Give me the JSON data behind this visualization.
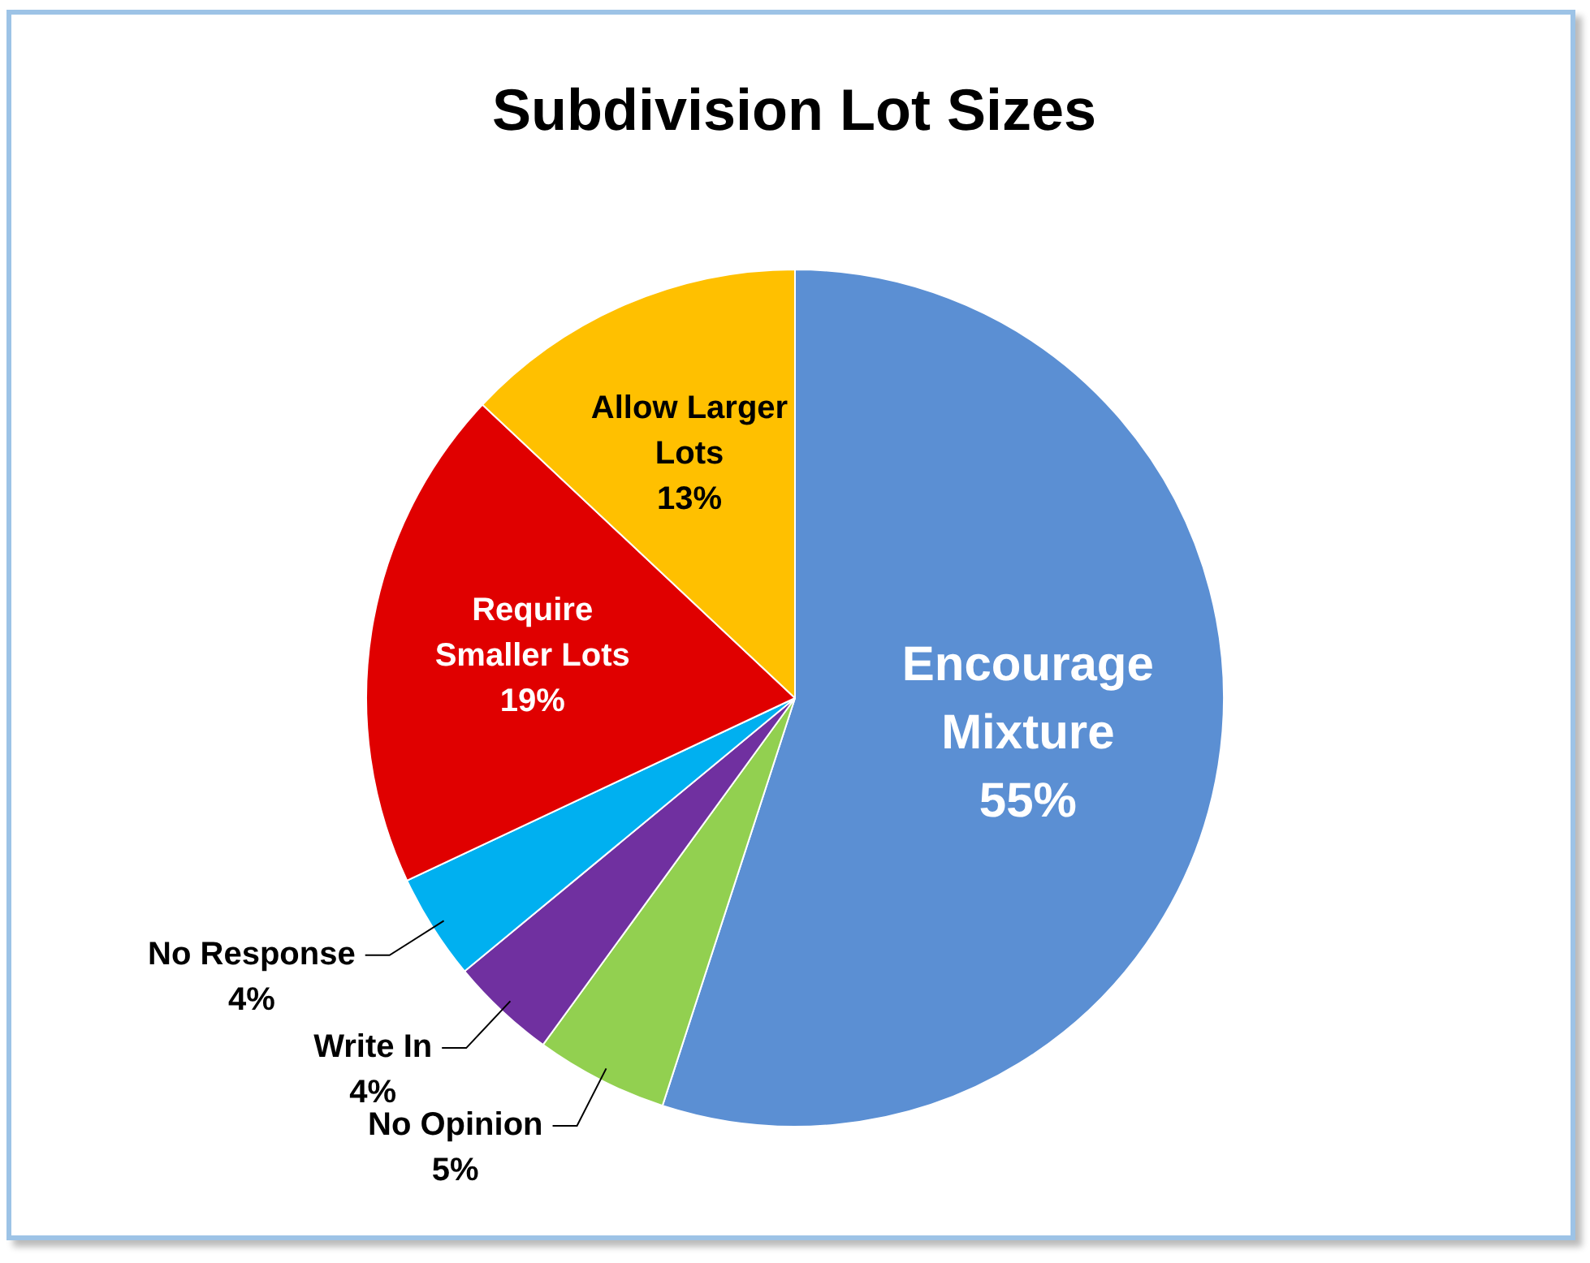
{
  "chart_data": {
    "type": "pie",
    "title": "Subdivision Lot Sizes",
    "categories": [
      "Encourage Mixture",
      "No Opinion",
      "Write In",
      "No Response",
      "Require Smaller Lots",
      "Allow Larger Lots"
    ],
    "values": [
      55,
      5,
      4,
      4,
      19,
      13
    ],
    "value_labels": [
      "55%",
      "5%",
      "4%",
      "4%",
      "19%",
      "13%"
    ],
    "colors": [
      "#5b8fd3",
      "#92d050",
      "#7030a0",
      "#00b0f0",
      "#e00000",
      "#ffc000"
    ],
    "legend": false
  }
}
